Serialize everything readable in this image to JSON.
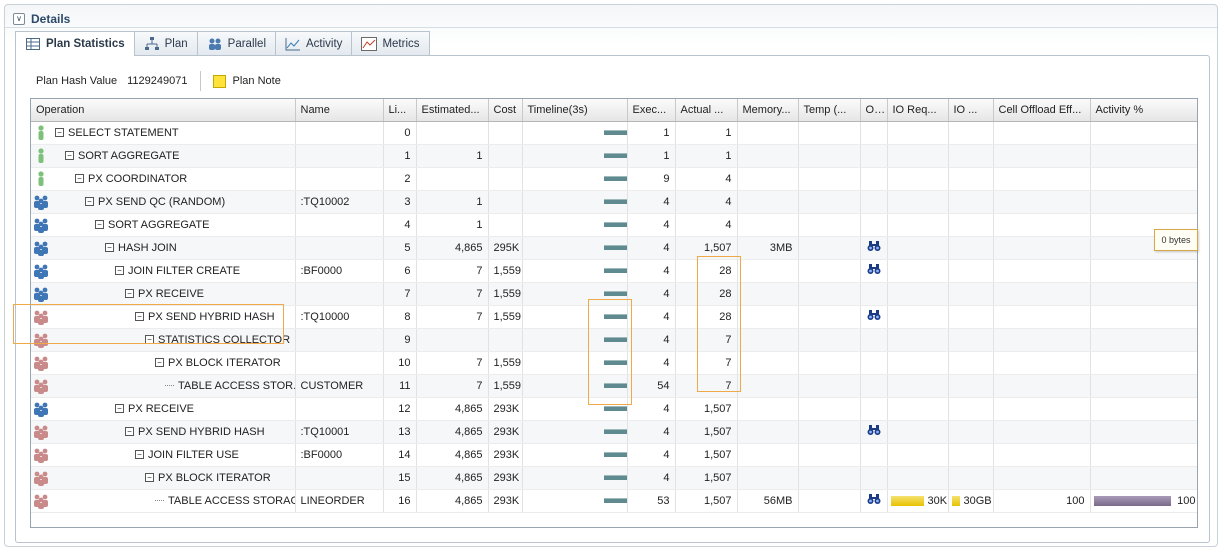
{
  "section": {
    "title": "Details"
  },
  "tabs": [
    {
      "label": "Plan Statistics",
      "icon": "table-icon"
    },
    {
      "label": "Plan",
      "icon": "tree-icon"
    },
    {
      "label": "Parallel",
      "icon": "people-icon"
    },
    {
      "label": "Activity",
      "icon": "chart-icon"
    },
    {
      "label": "Metrics",
      "icon": "metrics-icon"
    }
  ],
  "info": {
    "plan_hash_label": "Plan Hash Value",
    "plan_hash_value": "1129249071",
    "plan_note_label": "Plan Note"
  },
  "columns": [
    "Operation",
    "Name",
    "Li...",
    "Estimated...",
    "Cost",
    "Timeline(3s)",
    "Exec...",
    "Actual ...",
    "Memory...",
    "Temp (...",
    "O...",
    "IO Req...",
    "IO ...",
    "Cell Offload Eff...",
    "Activity %"
  ],
  "rows": [
    {
      "op": "SELECT STATEMENT",
      "name": "",
      "line": "0",
      "est": "",
      "cost": "",
      "exec": "1",
      "actual": "1",
      "mem": "",
      "temp": "",
      "o": false,
      "ioreq": "",
      "io": "",
      "cell": "",
      "act": ""
    },
    {
      "op": "SORT AGGREGATE",
      "name": "",
      "line": "1",
      "est": "1",
      "cost": "",
      "exec": "1",
      "actual": "1",
      "mem": "",
      "temp": "",
      "o": false,
      "ioreq": "",
      "io": "",
      "cell": "",
      "act": ""
    },
    {
      "op": "PX COORDINATOR",
      "name": "",
      "line": "2",
      "est": "",
      "cost": "",
      "exec": "9",
      "actual": "4",
      "mem": "",
      "temp": "",
      "o": false,
      "ioreq": "",
      "io": "",
      "cell": "",
      "act": ""
    },
    {
      "op": "PX SEND QC (RANDOM)",
      "name": ":TQ10002",
      "line": "3",
      "est": "1",
      "cost": "",
      "exec": "4",
      "actual": "4",
      "mem": "",
      "temp": "",
      "o": false,
      "ioreq": "",
      "io": "",
      "cell": "",
      "act": ""
    },
    {
      "op": "SORT AGGREGATE",
      "name": "",
      "line": "4",
      "est": "1",
      "cost": "",
      "exec": "4",
      "actual": "4",
      "mem": "",
      "temp": "",
      "o": false,
      "ioreq": "",
      "io": "",
      "cell": "",
      "act": ""
    },
    {
      "op": "HASH JOIN",
      "name": "",
      "line": "5",
      "est": "4,865",
      "cost": "295K",
      "exec": "4",
      "actual": "1,507",
      "mem": "3MB",
      "temp": "",
      "o": true,
      "ioreq": "",
      "io": "",
      "cell": "",
      "act": ""
    },
    {
      "op": "JOIN FILTER CREATE",
      "name": ":BF0000",
      "line": "6",
      "est": "7",
      "cost": "1,559",
      "exec": "4",
      "actual": "28",
      "mem": "",
      "temp": "",
      "o": true,
      "ioreq": "",
      "io": "",
      "cell": "",
      "act": ""
    },
    {
      "op": "PX RECEIVE",
      "name": "",
      "line": "7",
      "est": "7",
      "cost": "1,559",
      "exec": "4",
      "actual": "28",
      "mem": "",
      "temp": "",
      "o": false,
      "ioreq": "",
      "io": "",
      "cell": "",
      "act": ""
    },
    {
      "op": "PX SEND HYBRID HASH",
      "name": ":TQ10000",
      "line": "8",
      "est": "7",
      "cost": "1,559",
      "exec": "4",
      "actual": "28",
      "mem": "",
      "temp": "",
      "o": true,
      "ioreq": "",
      "io": "",
      "cell": "",
      "act": ""
    },
    {
      "op": "STATISTICS COLLECTOR",
      "name": "",
      "line": "9",
      "est": "",
      "cost": "",
      "exec": "4",
      "actual": "7",
      "mem": "",
      "temp": "",
      "o": false,
      "ioreq": "",
      "io": "",
      "cell": "",
      "act": ""
    },
    {
      "op": "PX BLOCK ITERATOR",
      "name": "",
      "line": "10",
      "est": "7",
      "cost": "1,559",
      "exec": "4",
      "actual": "7",
      "mem": "",
      "temp": "",
      "o": false,
      "ioreq": "",
      "io": "",
      "cell": "",
      "act": ""
    },
    {
      "op": "TABLE ACCESS STOR...",
      "name": "CUSTOMER",
      "line": "11",
      "est": "7",
      "cost": "1,559",
      "exec": "54",
      "actual": "7",
      "mem": "",
      "temp": "",
      "o": false,
      "ioreq": "",
      "io": "",
      "cell": "",
      "act": ""
    },
    {
      "op": "PX RECEIVE",
      "name": "",
      "line": "12",
      "est": "4,865",
      "cost": "293K",
      "exec": "4",
      "actual": "1,507",
      "mem": "",
      "temp": "",
      "o": false,
      "ioreq": "",
      "io": "",
      "cell": "",
      "act": ""
    },
    {
      "op": "PX SEND HYBRID HASH",
      "name": ":TQ10001",
      "line": "13",
      "est": "4,865",
      "cost": "293K",
      "exec": "4",
      "actual": "1,507",
      "mem": "",
      "temp": "",
      "o": true,
      "ioreq": "",
      "io": "",
      "cell": "",
      "act": ""
    },
    {
      "op": "JOIN FILTER USE",
      "name": ":BF0000",
      "line": "14",
      "est": "4,865",
      "cost": "293K",
      "exec": "4",
      "actual": "1,507",
      "mem": "",
      "temp": "",
      "o": false,
      "ioreq": "",
      "io": "",
      "cell": "",
      "act": ""
    },
    {
      "op": "PX BLOCK ITERATOR",
      "name": "",
      "line": "15",
      "est": "4,865",
      "cost": "293K",
      "exec": "4",
      "actual": "1,507",
      "mem": "",
      "temp": "",
      "o": false,
      "ioreq": "",
      "io": "",
      "cell": "",
      "act": ""
    },
    {
      "op": "TABLE ACCESS STORAG...",
      "name": "LINEORDER",
      "line": "16",
      "est": "4,865",
      "cost": "293K",
      "exec": "53",
      "actual": "1,507",
      "mem": "56MB",
      "temp": "",
      "o": true,
      "ioreq": "30K",
      "io": "30GB",
      "cell": "100",
      "act": "100"
    }
  ],
  "tooltip": "0 bytes",
  "colors": {
    "accent": "#2b4a6b",
    "highlight": "#f0a848",
    "io_bar": "#e8c200",
    "activity_bar": "#7a6a8a"
  }
}
